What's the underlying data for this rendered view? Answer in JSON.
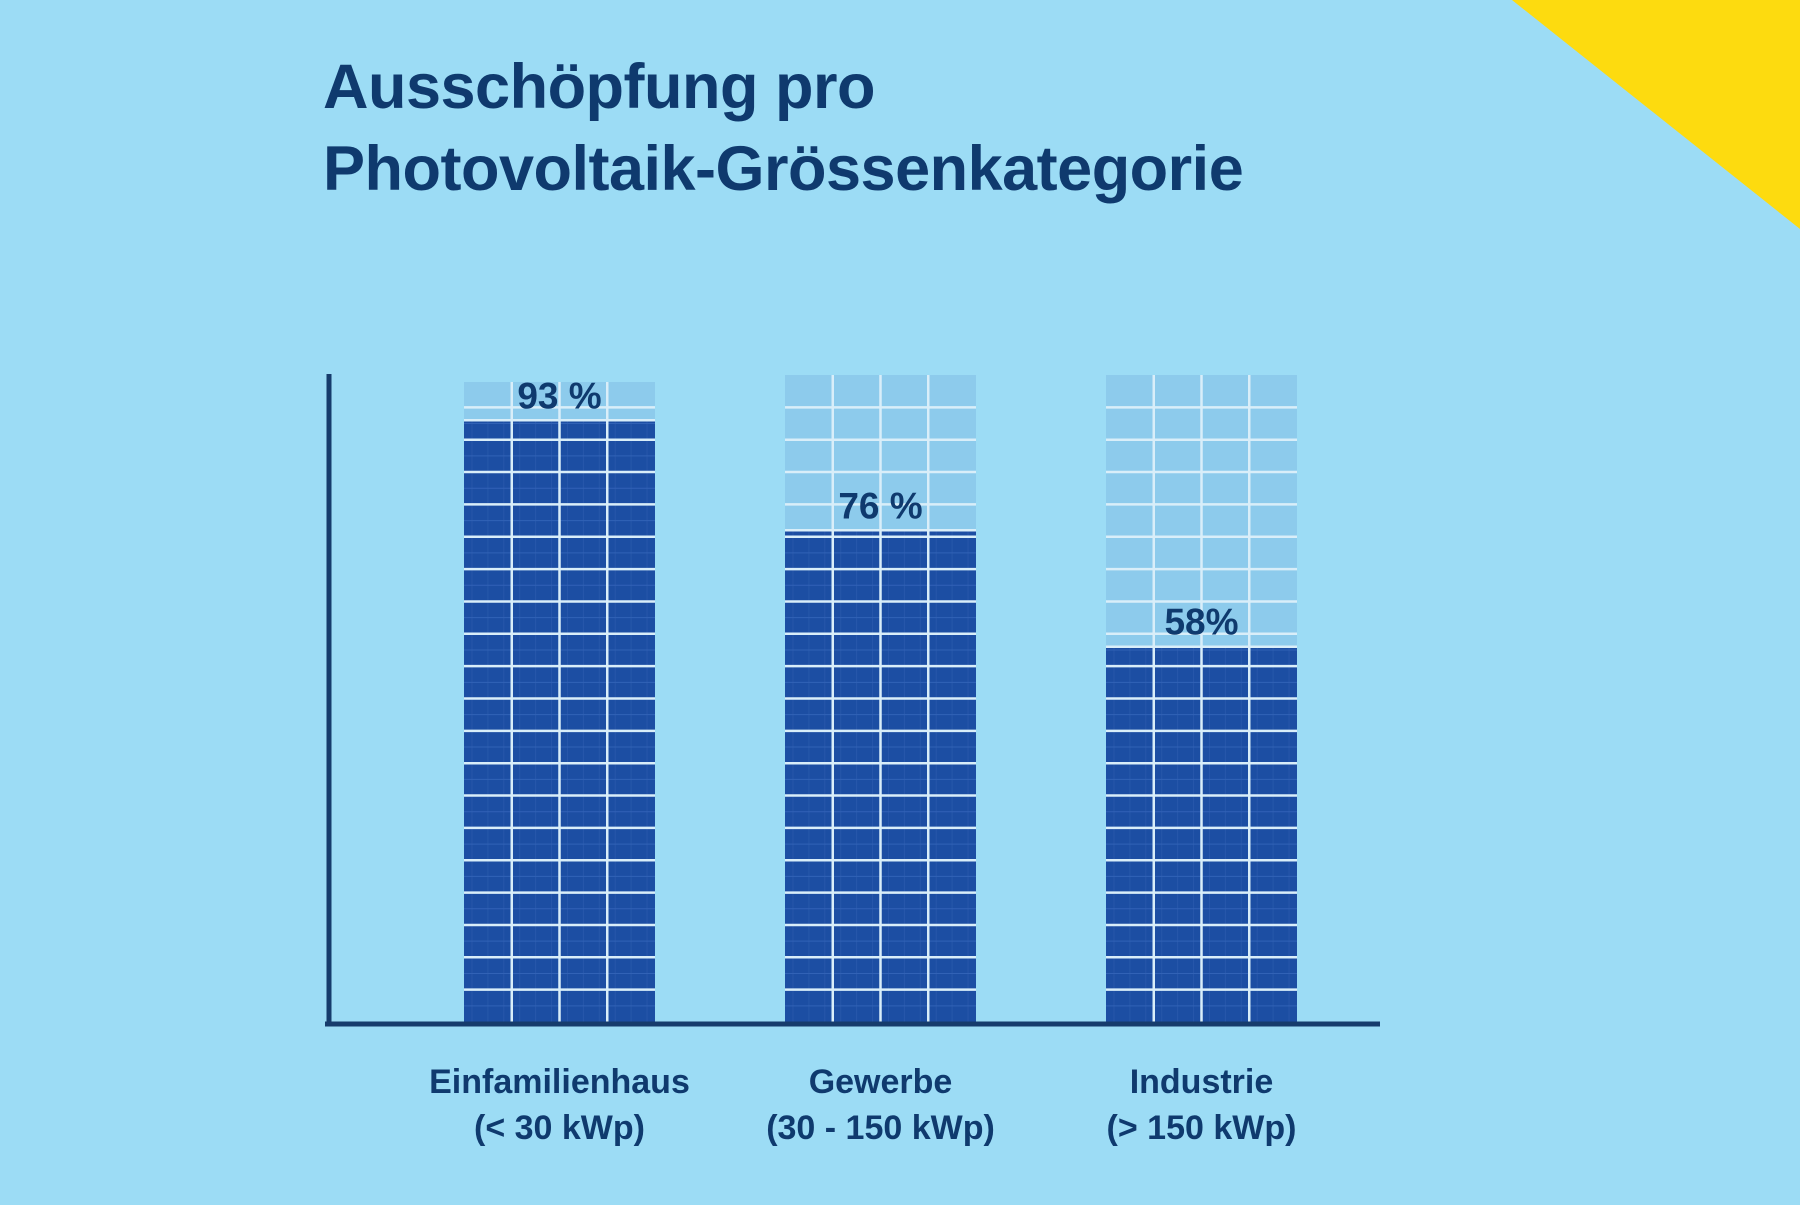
{
  "title": {
    "line1": "Ausschöpfung pro",
    "line2": "Photovoltaik-Grössenkategorie"
  },
  "colors": {
    "background": "#9cdcf5",
    "text": "#0f3a6e",
    "axis": "#163c6c",
    "bar_filled": "#1c4ea3",
    "bar_empty": "#8dcbec",
    "corner_accent": "#fddb0f"
  },
  "chart_data": {
    "type": "bar",
    "title": "Ausschöpfung pro Photovoltaik-Grössenkategorie",
    "xlabel": "",
    "ylabel": "",
    "ylim": [
      0,
      100
    ],
    "grid": false,
    "legend": "none",
    "categories": [
      [
        "Einfamilienhaus",
        "(< 30 kWp)"
      ],
      [
        "Gewerbe",
        "(30 - 150 kWp)"
      ],
      [
        "Industrie",
        "(> 150 kWp)"
      ]
    ],
    "values": [
      93,
      76,
      58
    ],
    "value_labels": [
      "93 %",
      "76 %",
      "58%"
    ]
  }
}
